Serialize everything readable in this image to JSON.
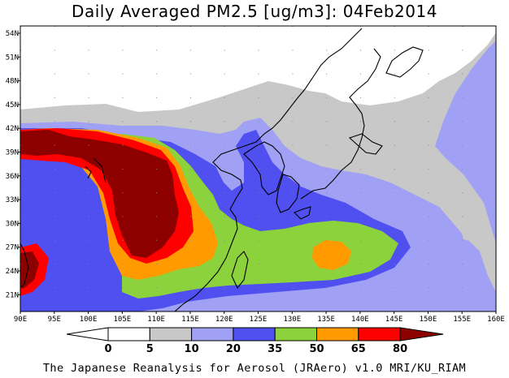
{
  "title": "Daily Averaged PM2.5 [ug/m3]: 04Feb2014",
  "credit": "The Japanese Reanalysis for Aerosol (JRAero) v1.0 MRI/KU_RIAM",
  "axes": {
    "lon_labels": [
      "90E",
      "95E",
      "100E",
      "105E",
      "110E",
      "115E",
      "120E",
      "125E",
      "130E",
      "135E",
      "140E",
      "145E",
      "150E",
      "155E",
      "160E"
    ],
    "lat_labels": [
      "54N",
      "51N",
      "48N",
      "45N",
      "42N",
      "39N",
      "36N",
      "33N",
      "30N",
      "27N",
      "24N",
      "21N"
    ]
  },
  "legend": {
    "ticks": [
      "0",
      "5",
      "10",
      "20",
      "35",
      "50",
      "65",
      "80"
    ],
    "colors": {
      "lt0": "#ffffff",
      "c0_5": "#ffffff",
      "c5_10": "#c8c8c8",
      "c10_20": "#a0a0f5",
      "c20_35": "#5050f0",
      "c35_50": "#8cd23c",
      "c50_65": "#ff9b00",
      "c65_80": "#ff0000",
      "gt80": "#8c0000"
    }
  }
}
